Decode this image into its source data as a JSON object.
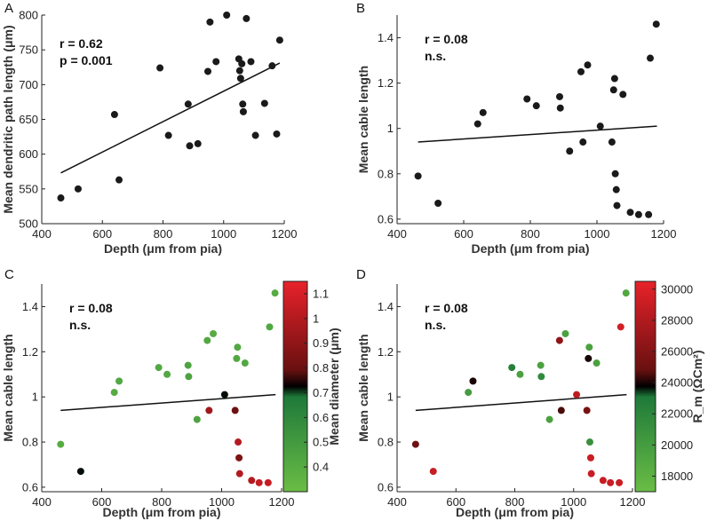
{
  "chart_data": [
    {
      "id": "A",
      "panel_label": "A",
      "type": "scatter",
      "xlabel": "Depth (μm from pia)",
      "ylabel": "Mean dendritic path length (μm)",
      "xlim": [
        400,
        1200
      ],
      "ylim": [
        500,
        800
      ],
      "xticks": [
        400,
        600,
        800,
        1000,
        1200
      ],
      "yticks": [
        500,
        550,
        600,
        650,
        700,
        750,
        800
      ],
      "annotations": [
        "r = 0.62",
        "p = 0.001"
      ],
      "points": [
        [
          463,
          537
        ],
        [
          520,
          550
        ],
        [
          640,
          657
        ],
        [
          655,
          563
        ],
        [
          790,
          724
        ],
        [
          818,
          627
        ],
        [
          883,
          672
        ],
        [
          888,
          612
        ],
        [
          915,
          615
        ],
        [
          948,
          719
        ],
        [
          955,
          790
        ],
        [
          975,
          733
        ],
        [
          1010,
          800
        ],
        [
          1050,
          737
        ],
        [
          1053,
          720
        ],
        [
          1056,
          709
        ],
        [
          1060,
          730
        ],
        [
          1063,
          672
        ],
        [
          1065,
          661
        ],
        [
          1075,
          795
        ],
        [
          1090,
          733
        ],
        [
          1105,
          627
        ],
        [
          1135,
          673
        ],
        [
          1160,
          727
        ],
        [
          1175,
          629
        ],
        [
          1185,
          764
        ]
      ],
      "fit_line": {
        "x": [
          463,
          1185
        ],
        "y": [
          573,
          731
        ]
      }
    },
    {
      "id": "B",
      "panel_label": "B",
      "type": "scatter",
      "xlabel": "Depth (μm from pia)",
      "ylabel": "Mean cable length",
      "xlim": [
        400,
        1200
      ],
      "ylim": [
        0.58,
        1.5
      ],
      "xticks": [
        400,
        600,
        800,
        1000,
        1200
      ],
      "yticks": [
        0.6,
        0.8,
        1,
        1.2,
        1.4
      ],
      "annotations": [
        "r = 0.08",
        "n.s."
      ],
      "points": [
        [
          463,
          0.79
        ],
        [
          523,
          0.67
        ],
        [
          642,
          1.02
        ],
        [
          658,
          1.07
        ],
        [
          790,
          1.13
        ],
        [
          818,
          1.1
        ],
        [
          888,
          1.14
        ],
        [
          890,
          1.09
        ],
        [
          918,
          0.9
        ],
        [
          952,
          1.25
        ],
        [
          958,
          0.94
        ],
        [
          972,
          1.28
        ],
        [
          1010,
          1.01
        ],
        [
          1045,
          0.94
        ],
        [
          1050,
          1.17
        ],
        [
          1053,
          1.22
        ],
        [
          1055,
          0.8
        ],
        [
          1058,
          0.73
        ],
        [
          1060,
          0.66
        ],
        [
          1078,
          1.15
        ],
        [
          1100,
          0.63
        ],
        [
          1125,
          0.62
        ],
        [
          1155,
          0.62
        ],
        [
          1160,
          1.31
        ],
        [
          1178,
          1.46
        ]
      ],
      "fit_line": {
        "x": [
          463,
          1180
        ],
        "y": [
          0.94,
          1.01
        ]
      }
    },
    {
      "id": "C",
      "panel_label": "C",
      "type": "scatter",
      "xlabel": "Depth (μm from pia)",
      "ylabel": "Mean cable length",
      "xlim": [
        400,
        1200
      ],
      "ylim": [
        0.58,
        1.5
      ],
      "xticks": [
        400,
        600,
        800,
        1000,
        1200
      ],
      "yticks": [
        0.6,
        0.8,
        1,
        1.2,
        1.4
      ],
      "annotations": [
        "r = 0.08",
        "n.s."
      ],
      "colorbar": {
        "label": "Mean diameter (μm)",
        "range": [
          0.3,
          1.15
        ],
        "ticks": [
          0.4,
          0.5,
          0.6,
          0.7,
          0.8,
          0.9,
          1,
          1.1
        ],
        "tick_labels": [
          "0.4",
          "0.5",
          "0.6",
          "0.7",
          "0.8",
          "0.9",
          "1",
          "1.1"
        ],
        "stops": [
          [
            0,
            "#6abd45"
          ],
          [
            0.45,
            "#1f7a3a"
          ],
          [
            0.5,
            "#000000"
          ],
          [
            0.58,
            "#6a1010"
          ],
          [
            1,
            "#e8222a"
          ]
        ]
      },
      "points": [
        [
          463,
          0.79,
          0.4
        ],
        [
          530,
          0.67,
          0.72
        ],
        [
          642,
          1.02,
          0.4
        ],
        [
          658,
          1.07,
          0.42
        ],
        [
          790,
          1.13,
          0.42
        ],
        [
          818,
          1.1,
          0.42
        ],
        [
          888,
          1.14,
          0.45
        ],
        [
          890,
          1.09,
          0.45
        ],
        [
          918,
          0.9,
          0.45
        ],
        [
          952,
          1.25,
          0.42
        ],
        [
          958,
          0.94,
          0.95
        ],
        [
          972,
          1.28,
          0.4
        ],
        [
          1010,
          1.01,
          0.72
        ],
        [
          1045,
          0.94,
          0.8
        ],
        [
          1050,
          1.17,
          0.42
        ],
        [
          1053,
          1.22,
          0.42
        ],
        [
          1055,
          0.8,
          1.0
        ],
        [
          1058,
          0.73,
          0.85
        ],
        [
          1060,
          0.66,
          1.0
        ],
        [
          1078,
          1.15,
          0.42
        ],
        [
          1100,
          0.63,
          1.0
        ],
        [
          1125,
          0.62,
          1.05
        ],
        [
          1155,
          0.62,
          1.05
        ],
        [
          1160,
          1.31,
          0.42
        ],
        [
          1178,
          1.46,
          0.4
        ]
      ],
      "fit_line": {
        "x": [
          463,
          1180
        ],
        "y": [
          0.94,
          1.01
        ]
      }
    },
    {
      "id": "D",
      "panel_label": "D",
      "type": "scatter",
      "xlabel": "Depth (μm from pia)",
      "ylabel": "Mean cable length",
      "xlim": [
        400,
        1200
      ],
      "ylim": [
        0.58,
        1.5
      ],
      "xticks": [
        400,
        600,
        800,
        1000,
        1200
      ],
      "yticks": [
        0.6,
        0.8,
        1,
        1.2,
        1.4
      ],
      "annotations": [
        "r = 0.08",
        "n.s."
      ],
      "colorbar": {
        "label": "R_m (ΩCm²)",
        "range": [
          17000,
          30500
        ],
        "ticks": [
          18000,
          20000,
          22000,
          24000,
          26000,
          28000,
          30000
        ],
        "tick_labels": [
          "18000",
          "20000",
          "22000",
          "24000",
          "26000",
          "28000",
          "30000"
        ],
        "stops": [
          [
            0,
            "#6abd45"
          ],
          [
            0.45,
            "#1f7a3a"
          ],
          [
            0.5,
            "#000000"
          ],
          [
            0.58,
            "#6a1010"
          ],
          [
            1,
            "#e8222a"
          ]
        ]
      },
      "points": [
        [
          463,
          0.79,
          25000
        ],
        [
          523,
          0.67,
          29000
        ],
        [
          642,
          1.02,
          20000
        ],
        [
          658,
          1.07,
          24000
        ],
        [
          790,
          1.13,
          22500
        ],
        [
          818,
          1.1,
          19500
        ],
        [
          888,
          1.14,
          19500
        ],
        [
          890,
          1.09,
          21500
        ],
        [
          918,
          0.9,
          19500
        ],
        [
          952,
          1.25,
          26500
        ],
        [
          958,
          0.94,
          24500
        ],
        [
          972,
          1.28,
          19500
        ],
        [
          1010,
          1.01,
          28500
        ],
        [
          1045,
          0.94,
          25500
        ],
        [
          1050,
          1.17,
          24000
        ],
        [
          1053,
          1.22,
          19500
        ],
        [
          1055,
          0.8,
          21000
        ],
        [
          1058,
          0.73,
          29000
        ],
        [
          1060,
          0.66,
          29000
        ],
        [
          1078,
          1.15,
          19500
        ],
        [
          1100,
          0.63,
          29000
        ],
        [
          1125,
          0.62,
          29000
        ],
        [
          1155,
          0.62,
          29000
        ],
        [
          1160,
          1.31,
          29500
        ],
        [
          1178,
          1.46,
          19000
        ]
      ],
      "fit_line": {
        "x": [
          463,
          1180
        ],
        "y": [
          0.94,
          1.01
        ]
      }
    }
  ]
}
